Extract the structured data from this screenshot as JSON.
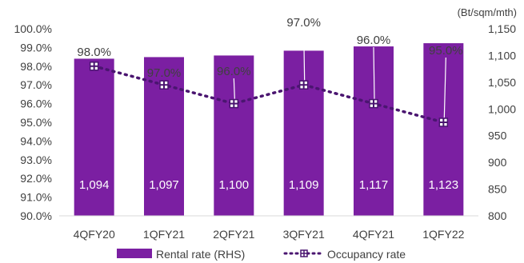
{
  "chart_data": {
    "type": "bar",
    "categories": [
      "4QFY20",
      "1QFY21",
      "2QFY21",
      "3QFY21",
      "4QFY21",
      "1QFY22"
    ],
    "series": [
      {
        "name": "Rental rate (RHS)",
        "type": "bar",
        "axis": "right",
        "values": [
          1094,
          1097,
          1100,
          1109,
          1117,
          1123
        ],
        "labels": [
          "1,094",
          "1,097",
          "1,100",
          "1,109",
          "1,117",
          "1,123"
        ]
      },
      {
        "name": "Occupancy rate",
        "type": "line",
        "axis": "left",
        "values": [
          98.0,
          97.0,
          96.0,
          97.0,
          96.0,
          95.0
        ],
        "labels": [
          "98.0%",
          "97.0%",
          "96.0%",
          "97.0%",
          "96.0%",
          "95.0%"
        ]
      }
    ],
    "y_left": {
      "ylim": [
        90,
        100
      ],
      "ticks": [
        "90.0%",
        "91.0%",
        "92.0%",
        "93.0%",
        "94.0%",
        "95.0%",
        "96.0%",
        "97.0%",
        "98.0%",
        "99.0%",
        "100.0%"
      ]
    },
    "y_right": {
      "unit": "(Bt/sqm/mth)",
      "ylim": [
        800,
        1150
      ],
      "ticks": [
        "800",
        "850",
        "900",
        "950",
        "1,000",
        "1,050",
        "1,100",
        "1,150"
      ]
    },
    "grid": false,
    "legend": "bottom",
    "colors": {
      "bar": "#7B1FA2",
      "line": "#4A1570",
      "text": "#404040",
      "axis": "#d9d9d9"
    }
  }
}
